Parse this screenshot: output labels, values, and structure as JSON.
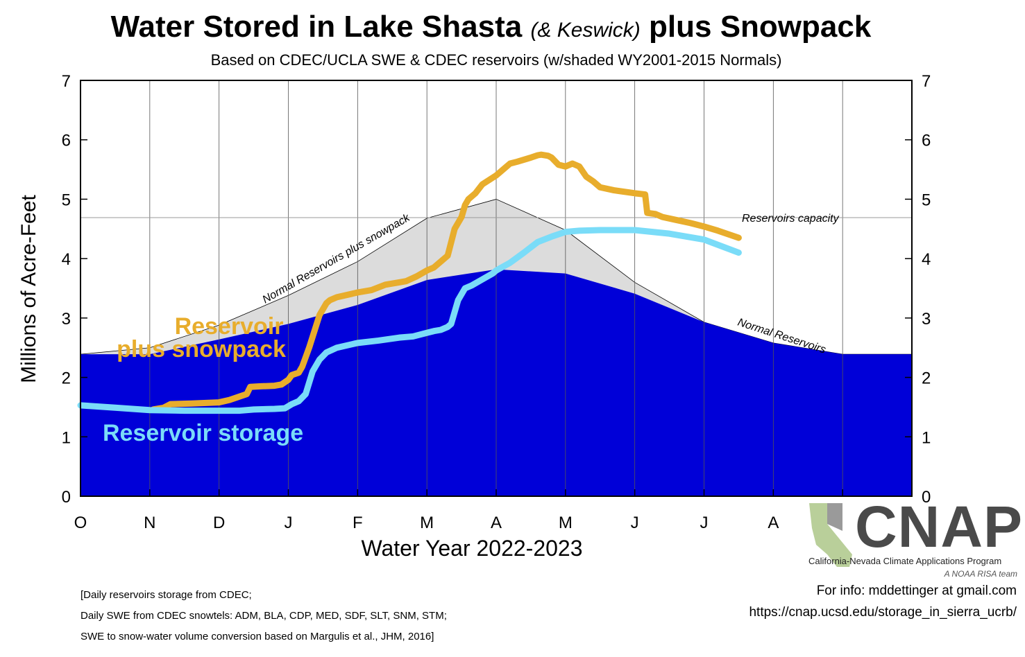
{
  "title": {
    "main": "Water Stored in Lake Shasta",
    "italic": "(& Keswick)",
    "end": "plus Snowpack"
  },
  "subtitle": "Based on CDEC/UCLA SWE & CDEC reservoirs (w/shaded WY2001-2015 Normals)",
  "footnotes": [
    "[Daily reservoirs storage from CDEC;",
    "Daily SWE from CDEC snowtels: ADM, BLA, CDP, MED, SDF, SLT, SNM, STM;",
    "SWE to snow-water volume conversion based on Margulis et al., JHM, 2016]"
  ],
  "info": {
    "contact": "For info: mddettinger at gmail.com",
    "url": "https://cnap.ucsd.edu/storage_in_sierra_ucrb/"
  },
  "logo": {
    "name": "CNAP",
    "program": "California-Nevada Climate Applications Program",
    "team": "A NOAA RISA team"
  },
  "chart_data": {
    "type": "area",
    "title": "Water Stored in Lake Shasta (& Keswick) plus Snowpack",
    "ylabel": "Millions of Acre-Feet",
    "xlabel": "Water Year 2022-2023",
    "ylim": [
      0,
      7
    ],
    "yticks": [
      0,
      1,
      2,
      3,
      4,
      5,
      6,
      7
    ],
    "xlim": [
      0,
      12
    ],
    "xticks": [
      {
        "x": 0,
        "label": "O"
      },
      {
        "x": 1,
        "label": "N"
      },
      {
        "x": 2,
        "label": "D"
      },
      {
        "x": 3,
        "label": "J"
      },
      {
        "x": 4,
        "label": "F"
      },
      {
        "x": 5,
        "label": "M"
      },
      {
        "x": 6,
        "label": "A"
      },
      {
        "x": 7,
        "label": "M"
      },
      {
        "x": 8,
        "label": "J"
      },
      {
        "x": 9,
        "label": "J"
      },
      {
        "x": 10,
        "label": "A"
      },
      {
        "x": 11,
        "label": ""
      }
    ],
    "grid": true,
    "capacity": {
      "value": 4.69,
      "label": "Reservoirs capacity"
    },
    "series": [
      {
        "name": "Normal Reservoirs",
        "kind": "area",
        "color": "#0000d8",
        "x": [
          0,
          1,
          2,
          3,
          4,
          5,
          6,
          7,
          8,
          9,
          10,
          11,
          12
        ],
        "values": [
          2.39,
          2.39,
          2.64,
          2.9,
          3.22,
          3.64,
          3.82,
          3.75,
          3.41,
          2.93,
          2.58,
          2.39,
          2.39
        ]
      },
      {
        "name": "Normal Reservoirs plus snowpack",
        "kind": "area",
        "color": "#dcdcdc",
        "x": [
          0,
          1,
          2,
          3,
          4,
          5,
          6,
          7,
          8,
          9,
          10,
          11,
          12
        ],
        "values": [
          2.39,
          2.5,
          2.88,
          3.38,
          3.95,
          4.68,
          5.0,
          4.48,
          3.6,
          2.93,
          2.58,
          2.39,
          2.39
        ]
      },
      {
        "name": "Reservoir plus snowpack",
        "kind": "line",
        "color": "#e8ad2c",
        "x": [
          1.05,
          1.2,
          1.3,
          1.6,
          2.0,
          2.15,
          2.3,
          2.4,
          2.45,
          2.6,
          2.8,
          2.9,
          3.0,
          3.05,
          3.15,
          3.2,
          3.3,
          3.45,
          3.55,
          3.6,
          3.7,
          4.0,
          4.2,
          4.4,
          4.6,
          4.7,
          4.85,
          5.0,
          5.1,
          5.2,
          5.3,
          5.4,
          5.5,
          5.55,
          5.6,
          5.7,
          5.8,
          6.0,
          6.1,
          6.2,
          6.3,
          6.5,
          6.6,
          6.65,
          6.75,
          6.8,
          6.9,
          7.0,
          7.1,
          7.2,
          7.3,
          7.4,
          7.5,
          7.7,
          8.0,
          8.15,
          8.18,
          8.3,
          8.4,
          8.6,
          8.8,
          9.0,
          9.2,
          9.5
        ],
        "values": [
          1.46,
          1.49,
          1.55,
          1.56,
          1.58,
          1.62,
          1.68,
          1.72,
          1.84,
          1.85,
          1.86,
          1.88,
          1.96,
          2.04,
          2.08,
          2.18,
          2.5,
          3.05,
          3.25,
          3.3,
          3.35,
          3.43,
          3.47,
          3.56,
          3.6,
          3.62,
          3.7,
          3.8,
          3.85,
          3.95,
          4.05,
          4.5,
          4.7,
          4.9,
          5.0,
          5.1,
          5.25,
          5.4,
          5.5,
          5.6,
          5.63,
          5.7,
          5.74,
          5.75,
          5.73,
          5.7,
          5.58,
          5.55,
          5.6,
          5.55,
          5.38,
          5.3,
          5.2,
          5.15,
          5.1,
          5.08,
          4.77,
          4.75,
          4.7,
          4.65,
          4.6,
          4.54,
          4.47,
          4.35
        ]
      },
      {
        "name": "Reservoir storage",
        "kind": "line",
        "color": "#7adcf8",
        "x": [
          0,
          0.5,
          1.0,
          1.5,
          2.0,
          2.3,
          2.5,
          2.8,
          2.95,
          3.05,
          3.15,
          3.25,
          3.35,
          3.45,
          3.55,
          3.7,
          4.0,
          4.3,
          4.6,
          4.8,
          5.0,
          5.1,
          5.2,
          5.3,
          5.35,
          5.45,
          5.55,
          5.65,
          5.8,
          5.95,
          6.0,
          6.2,
          6.4,
          6.6,
          6.8,
          7.0,
          7.2,
          7.5,
          8.0,
          8.5,
          9.0,
          9.5
        ],
        "values": [
          1.53,
          1.49,
          1.45,
          1.44,
          1.44,
          1.44,
          1.46,
          1.47,
          1.48,
          1.55,
          1.6,
          1.72,
          2.1,
          2.3,
          2.42,
          2.5,
          2.58,
          2.62,
          2.67,
          2.69,
          2.75,
          2.78,
          2.8,
          2.85,
          2.9,
          3.3,
          3.5,
          3.55,
          3.65,
          3.75,
          3.8,
          3.93,
          4.1,
          4.28,
          4.37,
          4.45,
          4.47,
          4.48,
          4.48,
          4.42,
          4.32,
          4.1
        ]
      }
    ],
    "annotations": [
      {
        "text": "Reservoir",
        "color": "#e8ad2c"
      },
      {
        "text": "plus snowpack",
        "color": "#e8ad2c"
      },
      {
        "text": "Reservoir storage",
        "color": "#7adcf8"
      },
      {
        "text": "Normal Reservoirs plus snowpack",
        "color": "#000000"
      },
      {
        "text": "Normal Reservoirs",
        "color": "#000000"
      },
      {
        "text": "Reservoirs capacity",
        "color": "#000000"
      }
    ]
  }
}
